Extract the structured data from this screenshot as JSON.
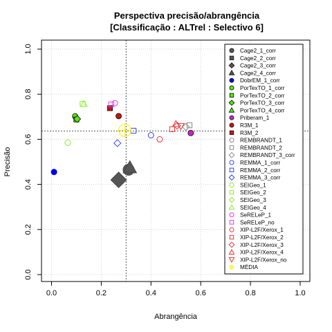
{
  "chart_data": {
    "type": "scatter",
    "title_line1": "Perspectiva precisão/abrangência",
    "title_line2": "[Classificação : ALTrel : Selectivo 6]",
    "xlabel": "Abrangência",
    "ylabel": "Precisão",
    "xlim": [
      0,
      1
    ],
    "ylim": [
      0,
      1
    ],
    "xticks": [
      "0.0",
      "0.2",
      "0.4",
      "0.6",
      "0.8",
      "1.0"
    ],
    "yticks": [
      "0.0",
      "0.2",
      "0.4",
      "0.6",
      "0.8",
      "1.0"
    ],
    "grid": true,
    "reference_lines": {
      "x": 0.3,
      "y": 0.637
    },
    "legend_position": "right",
    "series": [
      {
        "name": "Cage2_1_corr",
        "marker": "circle",
        "color": "#555555",
        "fill": "#555555",
        "points": [
          [
            0.31,
            0.465
          ]
        ],
        "size": 8
      },
      {
        "name": "Cage2_2_corr",
        "marker": "square",
        "color": "#555555",
        "fill": "#555555",
        "points": [],
        "size": 4
      },
      {
        "name": "Cage2_3_corr",
        "marker": "diamond",
        "color": "#555555",
        "fill": "#555555",
        "points": [
          [
            0.27,
            0.42
          ]
        ],
        "size": 9
      },
      {
        "name": "Cage2_4_corr",
        "marker": "triangle",
        "color": "#555555",
        "fill": "#555555",
        "points": [
          [
            0.315,
            0.475
          ]
        ],
        "size": 8
      },
      {
        "name": "DobrEM_1_corr",
        "marker": "circle",
        "color": "#0000ee",
        "fill": "#0000ee",
        "points": [
          [
            0.01,
            0.455
          ]
        ],
        "size": 4
      },
      {
        "name": "PorTexTO_1_corr",
        "marker": "circle",
        "color": "#222222",
        "fill": "#55ee00",
        "points": [
          [
            0.095,
            0.702
          ]
        ],
        "size": 4
      },
      {
        "name": "PorTexTO_2_corr",
        "marker": "square",
        "color": "#222222",
        "fill": "#55ee00",
        "points": [
          [
            0.1,
            0.688
          ]
        ],
        "size": 4
      },
      {
        "name": "PorTexTO_3_corr",
        "marker": "diamond",
        "color": "#222222",
        "fill": "#55ee00",
        "points": [
          [
            0.103,
            0.69
          ]
        ],
        "size": 4
      },
      {
        "name": "PorTexTO_4_corr",
        "marker": "triangle",
        "color": "#222222",
        "fill": "#55ee00",
        "points": [],
        "size": 4
      },
      {
        "name": "Priberam_1",
        "marker": "circle",
        "color": "#222222",
        "fill": "#cc22cc",
        "points": [
          [
            0.56,
            0.628
          ]
        ],
        "size": 4
      },
      {
        "name": "R3M_1",
        "marker": "circle",
        "color": "#222222",
        "fill": "#cc1111",
        "points": [
          [
            0.27,
            0.703
          ]
        ],
        "size": 4
      },
      {
        "name": "R3M_2",
        "marker": "square",
        "color": "#222222",
        "fill": "#cc1111",
        "points": [
          [
            0.235,
            0.738
          ]
        ],
        "size": 4
      },
      {
        "name": "REMBRANDT_1",
        "marker": "circle",
        "color": "#888888",
        "fill": "none",
        "points": [],
        "size": 4
      },
      {
        "name": "REMBRANDT_2",
        "marker": "square",
        "color": "#888888",
        "fill": "none",
        "points": [
          [
            0.555,
            0.662
          ]
        ],
        "size": 4
      },
      {
        "name": "REMBRANDT_3_corr",
        "marker": "diamond",
        "color": "#888888",
        "fill": "none",
        "points": [
          [
            0.54,
            0.655
          ]
        ],
        "size": 4
      },
      {
        "name": "REMMA_1_corr",
        "marker": "circle",
        "color": "#3344ee",
        "fill": "none",
        "points": [
          [
            0.4,
            0.618
          ]
        ],
        "size": 4
      },
      {
        "name": "REMMA_2_corr",
        "marker": "square",
        "color": "#3344ee",
        "fill": "none",
        "points": [
          [
            0.33,
            0.638
          ]
        ],
        "size": 4
      },
      {
        "name": "REMMA_3_corr",
        "marker": "diamond",
        "color": "#3344ee",
        "fill": "none",
        "points": [
          [
            0.265,
            0.583
          ]
        ],
        "size": 4
      },
      {
        "name": "SEIGeo_1",
        "marker": "circle",
        "color": "#88ee33",
        "fill": "none",
        "points": [
          [
            0.065,
            0.585
          ]
        ],
        "size": 4
      },
      {
        "name": "SEIGeo_2",
        "marker": "square",
        "color": "#88ee33",
        "fill": "none",
        "points": [
          [
            0.125,
            0.757
          ]
        ],
        "size": 4
      },
      {
        "name": "SEIGeo_3",
        "marker": "diamond",
        "color": "#88ee33",
        "fill": "none",
        "points": [],
        "size": 4
      },
      {
        "name": "SEIGeo_4",
        "marker": "triangle",
        "color": "#88ee33",
        "fill": "none",
        "points": [
          [
            0.13,
            0.757
          ]
        ],
        "size": 4
      },
      {
        "name": "SeRELeP_1",
        "marker": "circle",
        "color": "#ee33ee",
        "fill": "none",
        "points": [
          [
            0.255,
            0.76
          ]
        ],
        "size": 4
      },
      {
        "name": "SeRELeP_no",
        "marker": "square",
        "color": "#ee33ee",
        "fill": "none",
        "points": [
          [
            0.24,
            0.755
          ]
        ],
        "size": 4
      },
      {
        "name": "XIP-L2F/Xerox_1",
        "marker": "circle",
        "color": "#ee3333",
        "fill": "none",
        "points": [
          [
            0.435,
            0.6
          ]
        ],
        "size": 4
      },
      {
        "name": "XIP-L2F/Xerox_2",
        "marker": "square",
        "color": "#ee3333",
        "fill": "none",
        "points": [
          [
            0.485,
            0.645
          ]
        ],
        "size": 4
      },
      {
        "name": "XIP-L2F/Xerox_3",
        "marker": "diamond",
        "color": "#ee3333",
        "fill": "none",
        "points": [
          [
            0.505,
            0.66
          ]
        ],
        "size": 4
      },
      {
        "name": "XIP-L2F/Xerox_4",
        "marker": "triangle-up",
        "color": "#ee3333",
        "fill": "none",
        "points": [
          [
            0.5,
            0.668
          ]
        ],
        "size": 4
      },
      {
        "name": "XIP-L2F/Xerox_no",
        "marker": "triangle-down",
        "color": "#ee3333",
        "fill": "none",
        "points": [
          [
            0.52,
            0.658
          ]
        ],
        "size": 4
      },
      {
        "name": "MÉDIA",
        "marker": "crosshair",
        "color": "#ffee00",
        "fill": "none",
        "points": [
          [
            0.295,
            0.64
          ]
        ],
        "size": 9
      }
    ]
  }
}
